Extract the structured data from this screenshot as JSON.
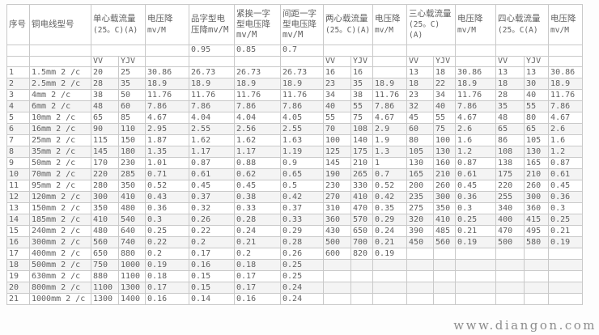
{
  "page": {
    "watermark": "www.diangon.com"
  },
  "table": {
    "vv": "VV",
    "yjv": "YJV",
    "groups": {
      "seq": {
        "label": "序号"
      },
      "model": {
        "label": "铜电线型号"
      },
      "single": {
        "label": "单心载流量",
        "sub": "(25。C)(A)"
      },
      "vd1": {
        "label": "电压降",
        "sub": "mv/M"
      },
      "pin": {
        "label": "品字型电压降mv/M"
      },
      "jin": {
        "label": "紧挨一字型电压降 mv/M"
      },
      "jian": {
        "label": "间距一字型电压降 mv/M"
      },
      "two": {
        "label": "两心载流量",
        "sub": "(25。C)(A)"
      },
      "vd2": {
        "label": "电压降",
        "sub": "mv/M"
      },
      "three": {
        "label": "三心载流量",
        "sub": "(25。C)(A)"
      },
      "vd3": {
        "label": "电压降",
        "sub": "mv/M"
      },
      "four": {
        "label": "四心载流量",
        "sub": "(25。C(A)"
      },
      "vd4": {
        "label": "电压降",
        "sub": "mv/M"
      }
    },
    "factors": {
      "pin": "0.95",
      "jin": "0.85",
      "jian": "0.7"
    },
    "col_keys": [
      "seq",
      "model",
      "single-vv",
      "single-yjv",
      "vd-single",
      "pin",
      "jin",
      "jian",
      "two-vv",
      "two-yjv",
      "vd-two",
      "three-vv",
      "three-yjv",
      "vd-three",
      "four-vv",
      "four-yjv",
      "vd-four"
    ],
    "rows": [
      [
        "1",
        "1.5mm 2 /c",
        "20",
        "25",
        "30.86",
        "26.73",
        "26.73",
        "26.73",
        "16",
        "16",
        "",
        "13",
        "18",
        "30.86",
        "13",
        "13",
        "30.86"
      ],
      [
        "2",
        "2.5mm 2 /c",
        "28",
        "35",
        "18.9",
        "18.9",
        "18.9",
        "18.9",
        "23",
        "35",
        "18.9",
        "18",
        "22",
        "18.9",
        "18",
        "30",
        "18.9"
      ],
      [
        "3",
        "4mm 2 /c",
        "38",
        "50",
        "11.76",
        "11.76",
        "11.76",
        "11.76",
        "34",
        "38",
        "11.76",
        "23",
        "34",
        "11.76",
        "28",
        "40",
        "11.76"
      ],
      [
        "4",
        "6mm 2 /c",
        "48",
        "60",
        "7.86",
        "7.86",
        "7.86",
        "7.86",
        "40",
        "55",
        "7.86",
        "32",
        "40",
        "7.86",
        "35",
        "55",
        "7.86"
      ],
      [
        "5",
        "10mm 2 /c",
        "65",
        "85",
        "4.67",
        "4.04",
        "4.04",
        "4.05",
        "55",
        "75",
        "4.67",
        "45",
        "55",
        "4.67",
        "48",
        "80",
        "4.67"
      ],
      [
        "6",
        "16mm 2 /c",
        "90",
        "110",
        "2.95",
        "2.55",
        "2.56",
        "2.55",
        "70",
        "108",
        "2.9",
        "60",
        "75",
        "2.6",
        "65",
        "65",
        "2.6"
      ],
      [
        "7",
        "25mm 2 /c",
        "115",
        "150",
        "1.87",
        "1.62",
        "1.62",
        "1.63",
        "100",
        "140",
        "1.9",
        "80",
        "100",
        "1.6",
        "86",
        "105",
        "1.6"
      ],
      [
        "8",
        "35mm 2 /c",
        "145",
        "180",
        "1.35",
        "1.17",
        "1.17",
        "1.19",
        "125",
        "175",
        "1.3",
        "105",
        "130",
        "1.2",
        "108",
        "130",
        "1.2"
      ],
      [
        "9",
        "50mm 2 /c",
        "170",
        "230",
        "1.01",
        "0.87",
        "0.88",
        "0.9",
        "145",
        "210",
        "1",
        "130",
        "160",
        "0.87",
        "138",
        "165",
        "0.87"
      ],
      [
        "10",
        "70mm 2 /c",
        "220",
        "285",
        "0.71",
        "0.61",
        "0.62",
        "0.65",
        "190",
        "265",
        "0.7",
        "165",
        "210",
        "0.61",
        "175",
        "210",
        "0.61"
      ],
      [
        "11",
        "95mm 2 /c",
        "280",
        "350",
        "0.52",
        "0.45",
        "0.45",
        "0.5",
        "230",
        "330",
        "0.52",
        "200",
        "260",
        "0.45",
        "220",
        "260",
        "0.45"
      ],
      [
        "12",
        "120mm 2 /c",
        "300",
        "410",
        "0.43",
        "0.37",
        "0.38",
        "0.42",
        "270",
        "410",
        "0.42",
        "235",
        "300",
        "0.36",
        "255",
        "300",
        "0.36"
      ],
      [
        "13",
        "150mm 2 /c",
        "350",
        "480",
        "0.36",
        "0.32",
        "0.33",
        "0.37",
        "310",
        "470",
        "0.35",
        "275",
        "350",
        "0.3",
        "340",
        "360",
        "0.3"
      ],
      [
        "14",
        "185mm 2 /c",
        "410",
        "540",
        "0.3",
        "0.26",
        "0.28",
        "0.33",
        "360",
        "570",
        "0.29",
        "320",
        "410",
        "0.25",
        "400",
        "415",
        "0.25"
      ],
      [
        "15",
        "240mm 2 /c",
        "480",
        "640",
        "0.25",
        "0.22",
        "0.24",
        "0.29",
        "430",
        "650",
        "0.24",
        "390",
        "485",
        "0.21",
        "470",
        "495",
        "0.21"
      ],
      [
        "16",
        "300mm 2 /c",
        "560",
        "740",
        "0.22",
        "0.2",
        "0.21",
        "0.28",
        "500",
        "700",
        "0.21",
        "450",
        "560",
        "0.19",
        "500",
        "580",
        "0.19"
      ],
      [
        "17",
        "400mm 2 /c",
        "650",
        "880",
        "0.2",
        "0.17",
        "0.2",
        "0.26",
        "600",
        "820",
        "0.19",
        "",
        "",
        "",
        "",
        "",
        ""
      ],
      [
        "18",
        "500mm 2 /c",
        "750",
        "1000",
        "0.19",
        "0.16",
        "0.18",
        "0.25",
        "",
        "",
        "",
        "",
        "",
        "",
        "",
        "",
        ""
      ],
      [
        "19",
        "630mm 2 /c",
        "880",
        "1100",
        "0.18",
        "0.15",
        "0.17",
        "0.25",
        "",
        "",
        "",
        "",
        "",
        "",
        "",
        "",
        ""
      ],
      [
        "20",
        "800mm 2 /c",
        "1100",
        "1300",
        "0.17",
        "0.15",
        "0.17",
        "0.24",
        "",
        "",
        "",
        "",
        "",
        "",
        "",
        "",
        ""
      ],
      [
        "21",
        "1000mm 2 /c",
        "1300",
        "1400",
        "0.16",
        "0.14",
        "0.16",
        "0.24",
        "",
        "",
        "",
        "",
        "",
        "",
        "",
        "",
        ""
      ]
    ]
  }
}
